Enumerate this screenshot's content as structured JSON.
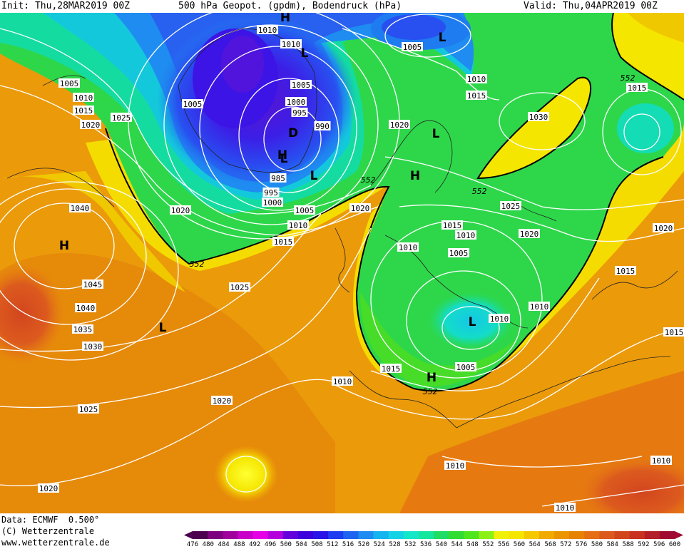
{
  "header": {
    "init": "Init: Thu,28MAR2019 00Z",
    "title": "500 hPa Geopot. (gpdm), Bodendruck (hPa)",
    "valid": "Valid: Thu,04APR2019 00Z"
  },
  "footer": {
    "data_line": "Data: ECMWF  0.500°",
    "copyright": "(C) Wetterzentrale",
    "website": "www.wetterzentrale.de"
  },
  "legend": {
    "ticks": [
      "476",
      "480",
      "484",
      "488",
      "492",
      "496",
      "500",
      "504",
      "508",
      "512",
      "516",
      "520",
      "524",
      "528",
      "532",
      "536",
      "540",
      "544",
      "548",
      "552",
      "556",
      "560",
      "564",
      "568",
      "572",
      "576",
      "580",
      "584",
      "588",
      "592",
      "596",
      "600"
    ],
    "colors": [
      "#4b0050",
      "#7d007f",
      "#a0009b",
      "#c800c8",
      "#e600e6",
      "#b400dc",
      "#6400dc",
      "#3c00dc",
      "#2814e6",
      "#1e3cf0",
      "#1e64f0",
      "#1e8cf0",
      "#14b4f0",
      "#14d2e6",
      "#14e6c8",
      "#14e6a0",
      "#1edc64",
      "#32dc32",
      "#50e61e",
      "#8cf014",
      "#f0f00a",
      "#f5e600",
      "#f5c800",
      "#f0aa00",
      "#eb9600",
      "#e68200",
      "#e66e14",
      "#dc5a1e",
      "#d2461e",
      "#c8321e",
      "#b41e28",
      "#a00a32"
    ]
  },
  "map": {
    "pressure_labels": [
      "1010",
      "1010",
      "1005",
      "1010",
      "1015",
      "1020",
      "1025",
      "1005",
      "1010",
      "1005",
      "1000",
      "995",
      "990",
      "985",
      "995",
      "1000",
      "1005",
      "1010",
      "1015",
      "1020",
      "1005",
      "1010",
      "1015",
      "1020",
      "1030",
      "1015",
      "1025",
      "1015",
      "1020",
      "1010",
      "1005",
      "1015",
      "1020",
      "1015",
      "1010",
      "1000",
      "1005",
      "1015",
      "1010",
      "1040",
      "1045",
      "1040",
      "1035",
      "1030",
      "1025",
      "1020",
      "1020",
      "1025",
      "1010",
      "1010",
      "1010",
      "1020",
      "1015",
      "1010"
    ],
    "centers": [
      "H",
      "L",
      "L",
      "L",
      "D",
      "H",
      "H",
      "L",
      "H",
      "L",
      "L",
      "H",
      "L"
    ],
    "geopot_labels": [
      "552",
      "552",
      "552",
      "552",
      "552"
    ]
  }
}
